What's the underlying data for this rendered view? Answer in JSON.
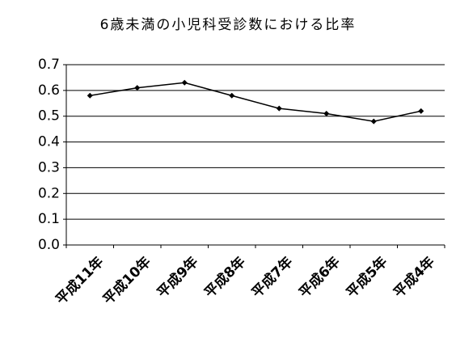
{
  "chart_data": {
    "type": "line",
    "title": "6歳未満の小児科受診数における比率",
    "categories": [
      "平成11年",
      "平成10年",
      "平成9年",
      "平成8年",
      "平成7年",
      "平成6年",
      "平成5年",
      "平成4年"
    ],
    "values": [
      0.58,
      0.61,
      0.63,
      0.58,
      0.53,
      0.51,
      0.48,
      0.52
    ],
    "color": "#000000",
    "ylim": [
      0,
      0.7
    ],
    "yticks": [
      {
        "value": 0,
        "label": "0.0"
      },
      0.1,
      0.2,
      0.3,
      0.4,
      0.5,
      0.6,
      0.7
    ],
    "grid": true
  }
}
